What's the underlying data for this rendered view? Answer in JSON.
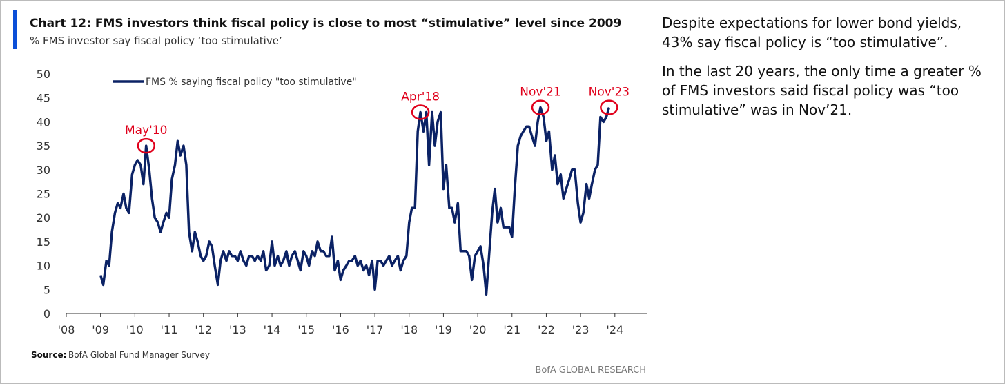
{
  "chart_data": {
    "type": "line",
    "title": "Chart 12: FMS investors think fiscal policy is close to most “stimulative” level since 2009",
    "subtitle": "% FMS investor say fiscal policy ‘too stimulative’",
    "source_label": "Source:",
    "source": "BofA Global Fund Manager Survey",
    "footer": "BofA GLOBAL RESEARCH",
    "x": [
      2009.0,
      2009.08,
      2009.17,
      2009.25,
      2009.33,
      2009.42,
      2009.5,
      2009.58,
      2009.67,
      2009.75,
      2009.83,
      2009.92,
      2010.0,
      2010.08,
      2010.17,
      2010.25,
      2010.33,
      2010.42,
      2010.5,
      2010.58,
      2010.67,
      2010.75,
      2010.83,
      2010.92,
      2011.0,
      2011.08,
      2011.17,
      2011.25,
      2011.33,
      2011.42,
      2011.5,
      2011.58,
      2011.67,
      2011.75,
      2011.83,
      2011.92,
      2012.0,
      2012.08,
      2012.17,
      2012.25,
      2012.33,
      2012.42,
      2012.5,
      2012.58,
      2012.67,
      2012.75,
      2012.83,
      2012.92,
      2013.0,
      2013.08,
      2013.17,
      2013.25,
      2013.33,
      2013.42,
      2013.5,
      2013.58,
      2013.67,
      2013.75,
      2013.83,
      2013.92,
      2014.0,
      2014.08,
      2014.17,
      2014.25,
      2014.33,
      2014.42,
      2014.5,
      2014.58,
      2014.67,
      2014.75,
      2014.83,
      2014.92,
      2015.0,
      2015.08,
      2015.17,
      2015.25,
      2015.33,
      2015.42,
      2015.5,
      2015.58,
      2015.67,
      2015.75,
      2015.83,
      2015.92,
      2016.0,
      2016.08,
      2016.17,
      2016.25,
      2016.33,
      2016.42,
      2016.5,
      2016.58,
      2016.67,
      2016.75,
      2016.83,
      2016.92,
      2017.0,
      2017.08,
      2017.17,
      2017.25,
      2017.33,
      2017.42,
      2017.5,
      2017.58,
      2017.67,
      2017.75,
      2017.83,
      2017.92,
      2018.0,
      2018.08,
      2018.17,
      2018.25,
      2018.33,
      2018.42,
      2018.5,
      2018.58,
      2018.67,
      2018.75,
      2018.83,
      2018.92,
      2019.0,
      2019.08,
      2019.17,
      2019.25,
      2019.33,
      2019.42,
      2019.5,
      2019.58,
      2019.67,
      2019.75,
      2019.83,
      2019.92,
      2020.0,
      2020.08,
      2020.17,
      2020.25,
      2020.33,
      2020.42,
      2020.5,
      2020.58,
      2020.67,
      2020.75,
      2020.83,
      2020.92,
      2021.0,
      2021.08,
      2021.17,
      2021.25,
      2021.33,
      2021.42,
      2021.5,
      2021.58,
      2021.67,
      2021.75,
      2021.83,
      2021.92,
      2022.0,
      2022.08,
      2022.17,
      2022.25,
      2022.33,
      2022.42,
      2022.5,
      2022.58,
      2022.67,
      2022.75,
      2022.83,
      2022.92,
      2023.0,
      2023.08,
      2023.17,
      2023.25,
      2023.33,
      2023.42,
      2023.5,
      2023.58,
      2023.67,
      2023.75,
      2023.83
    ],
    "series": [
      {
        "name": "FMS % saying fiscal policy \"too stimulative\"",
        "color": "#0b2265",
        "values": [
          8,
          6,
          11,
          10,
          17,
          21,
          23,
          22,
          25,
          22,
          21,
          29,
          31,
          32,
          31,
          27,
          35,
          30,
          24,
          20,
          19,
          17,
          19,
          21,
          20,
          28,
          31,
          36,
          33,
          35,
          31,
          17,
          13,
          17,
          15,
          12,
          11,
          12,
          15,
          14,
          10,
          6,
          11,
          13,
          11,
          13,
          12,
          12,
          11,
          13,
          11,
          10,
          12,
          12,
          11,
          12,
          11,
          13,
          9,
          10,
          15,
          10,
          12,
          10,
          11,
          13,
          10,
          12,
          13,
          11,
          9,
          13,
          12,
          10,
          13,
          12,
          15,
          13,
          13,
          12,
          12,
          16,
          9,
          11,
          7,
          9,
          10,
          11,
          11,
          12,
          10,
          11,
          9,
          10,
          8,
          11,
          5,
          11,
          11,
          10,
          11,
          12,
          10,
          11,
          12,
          9,
          11,
          12,
          19,
          22,
          22,
          38,
          42,
          38,
          42,
          31,
          42,
          35,
          40,
          42,
          26,
          31,
          22,
          22,
          19,
          23,
          13,
          13,
          13,
          12,
          7,
          12,
          13,
          14,
          10,
          4,
          12,
          21,
          26,
          19,
          22,
          18,
          18,
          18,
          16,
          26,
          35,
          37,
          38,
          39,
          39,
          37,
          35,
          40,
          43,
          41,
          36,
          38,
          30,
          33,
          27,
          29,
          24,
          26,
          28,
          30,
          30,
          23,
          19,
          21,
          27,
          24,
          27,
          30,
          31,
          41,
          40,
          41,
          43
        ]
      }
    ],
    "annotations": [
      {
        "text": "May'10",
        "x": 2010.33,
        "y": 35
      },
      {
        "text": "Apr'18",
        "x": 2018.33,
        "y": 42
      },
      {
        "text": "Nov'21",
        "x": 2021.83,
        "y": 43
      },
      {
        "text": "Nov'23",
        "x": 2023.83,
        "y": 43
      }
    ],
    "annotation_color": "#e0001b",
    "xlim": [
      2008,
      2024.95
    ],
    "xticks": [
      {
        "value": 2008,
        "label": "'08"
      },
      {
        "value": 2009,
        "label": "'09"
      },
      {
        "value": 2010,
        "label": "'10"
      },
      {
        "value": 2011,
        "label": "'11"
      },
      {
        "value": 2012,
        "label": "'12"
      },
      {
        "value": 2013,
        "label": "'13"
      },
      {
        "value": 2014,
        "label": "'14"
      },
      {
        "value": 2015,
        "label": "'15"
      },
      {
        "value": 2016,
        "label": "'16"
      },
      {
        "value": 2017,
        "label": "'17"
      },
      {
        "value": 2018,
        "label": "'18"
      },
      {
        "value": 2019,
        "label": "'19"
      },
      {
        "value": 2020,
        "label": "'20"
      },
      {
        "value": 2021,
        "label": "'21"
      },
      {
        "value": 2022,
        "label": "'22"
      },
      {
        "value": 2023,
        "label": "'23"
      },
      {
        "value": 2024,
        "label": "'24"
      }
    ],
    "ylim": [
      0,
      50
    ],
    "yticks": [
      0,
      5,
      10,
      15,
      20,
      25,
      30,
      35,
      40,
      45,
      50
    ],
    "grid": false,
    "legend": "top-left"
  },
  "side_text": [
    "Despite expectations for lower bond yields, 43% say fiscal policy is “too stimulative”.",
    "In the last 20 years, the only time a greater % of FMS investors said fiscal policy was “too stimulative” was in Nov’21."
  ]
}
